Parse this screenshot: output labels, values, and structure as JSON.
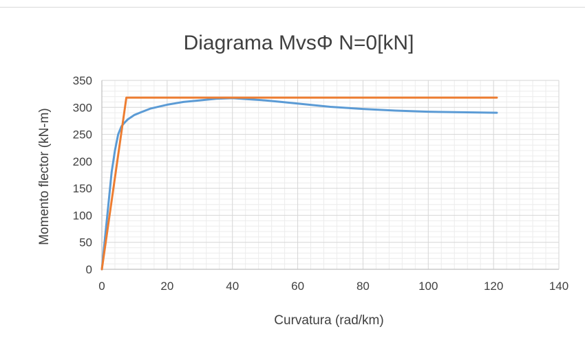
{
  "chart_data": {
    "type": "line",
    "title": "Diagrama MvsΦ N=0[kN]",
    "xlabel": "Curvatura (rad/km)",
    "ylabel": "Momento flector (kN-m)",
    "xlim": [
      0,
      140
    ],
    "ylim": [
      0,
      350
    ],
    "xticks": [
      0,
      20,
      40,
      60,
      80,
      100,
      120,
      140
    ],
    "yticks": [
      0,
      50,
      100,
      150,
      200,
      250,
      300,
      350
    ],
    "x_tick_labels": [
      "0",
      "20",
      "40",
      "60",
      "80",
      "100",
      "120",
      "140"
    ],
    "y_tick_labels": [
      "0",
      "50",
      "100",
      "150",
      "200",
      "250",
      "300",
      "350"
    ],
    "x_minor_step": 4,
    "y_minor_step": 10,
    "grid": true,
    "legend": "none",
    "series": [
      {
        "color": "#5b9bd5",
        "points": [
          [
            0,
            0
          ],
          [
            1,
            60
          ],
          [
            2,
            120
          ],
          [
            3,
            180
          ],
          [
            4,
            220
          ],
          [
            5,
            250
          ],
          [
            6,
            265
          ],
          [
            7,
            272
          ],
          [
            8,
            278
          ],
          [
            10,
            286
          ],
          [
            12,
            291
          ],
          [
            15,
            298
          ],
          [
            20,
            305
          ],
          [
            25,
            310
          ],
          [
            30,
            313
          ],
          [
            35,
            316
          ],
          [
            40,
            317
          ],
          [
            45,
            315
          ],
          [
            50,
            313
          ],
          [
            55,
            310
          ],
          [
            60,
            307
          ],
          [
            70,
            301
          ],
          [
            80,
            297
          ],
          [
            90,
            294
          ],
          [
            100,
            292
          ],
          [
            110,
            291
          ],
          [
            121,
            290
          ]
        ]
      },
      {
        "color": "#ed7d31",
        "points": [
          [
            0,
            0
          ],
          [
            7.5,
            318
          ],
          [
            121,
            318
          ]
        ]
      }
    ]
  }
}
